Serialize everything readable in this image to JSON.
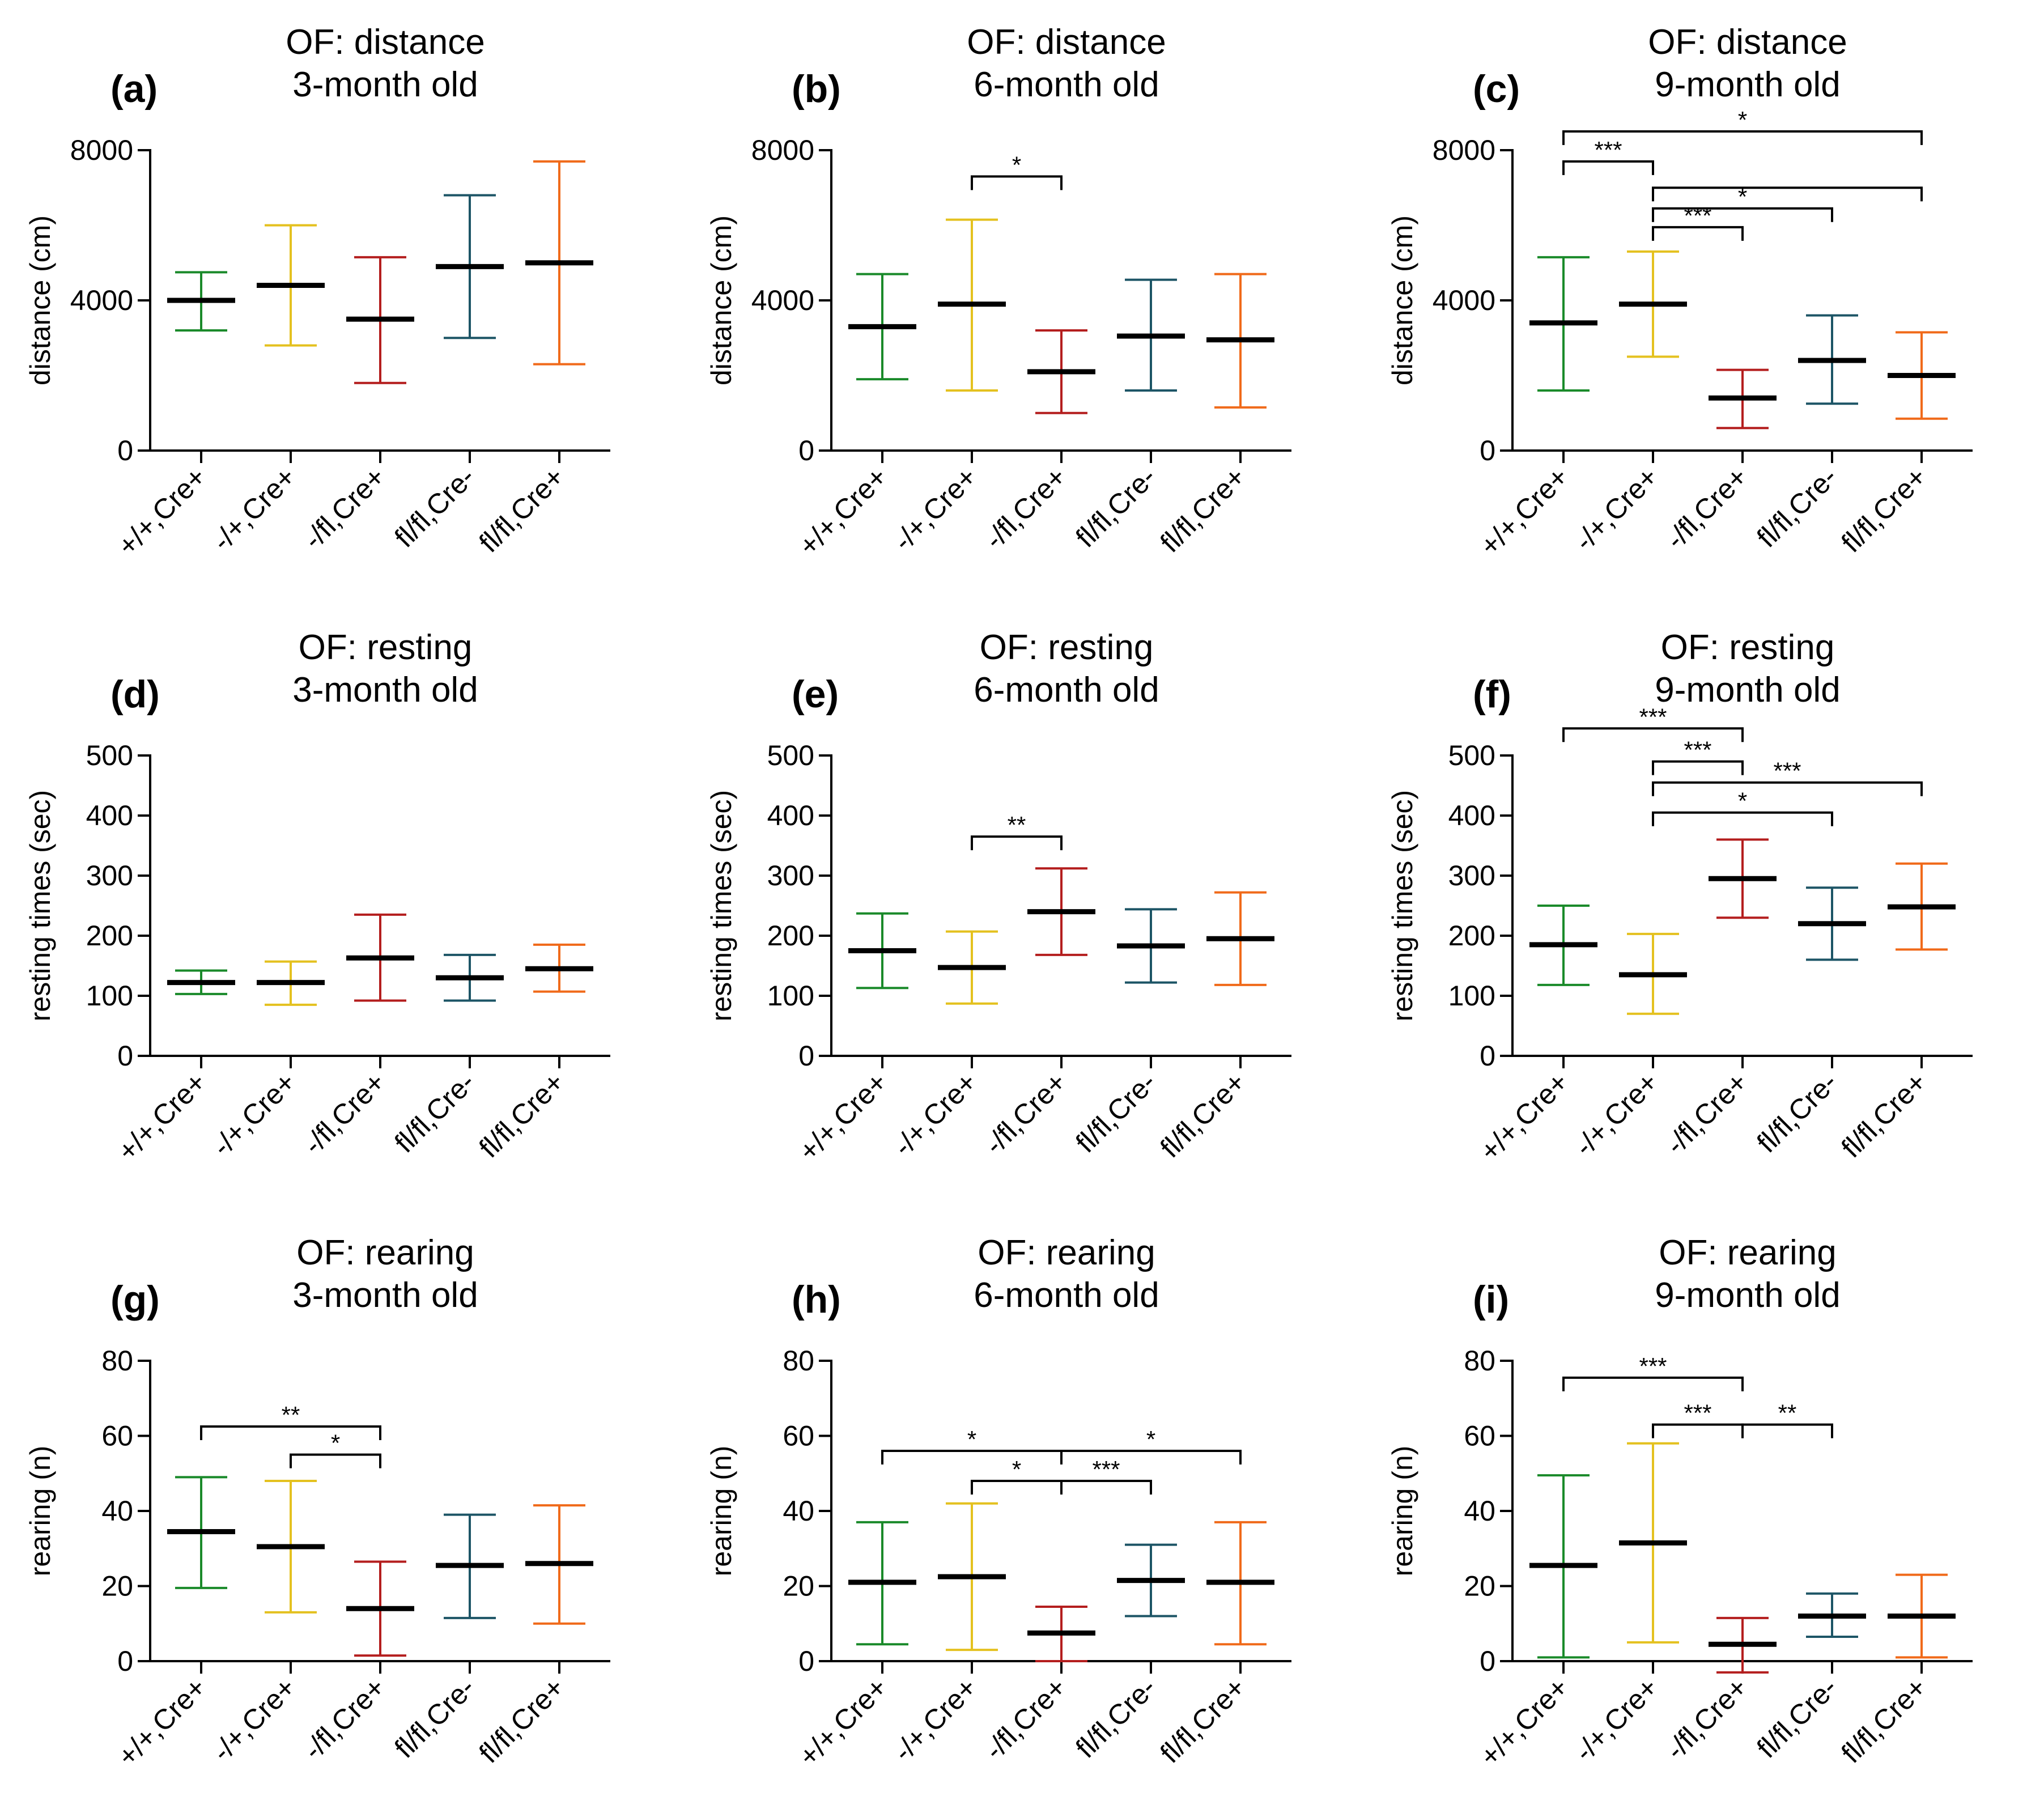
{
  "figure": {
    "groups": [
      "+/+,Cre+",
      "-/+,Cre+",
      "-/fl,Cre+",
      "fl/fl,Cre-",
      "fl/fl,Cre+"
    ],
    "colors": [
      "#1a8a2a",
      "#e4c11f",
      "#b41e1e",
      "#1d5566",
      "#f06a1a"
    ]
  },
  "chart_data": [
    {
      "type": "errorbar",
      "letter": "(a)",
      "title": "OF: distance",
      "subtitle": "3-month old",
      "ylabel": "distance (cm)",
      "ylim": [
        0,
        8000
      ],
      "yticks": [
        0,
        4000,
        8000
      ],
      "categories": [
        "+/+,Cre+",
        "-/+,Cre+",
        "-/fl,Cre+",
        "fl/fl,Cre-",
        "fl/fl,Cre+"
      ],
      "mean": [
        4000,
        4400,
        3500,
        4900,
        5000
      ],
      "low": [
        3200,
        2800,
        1800,
        3000,
        2300
      ],
      "high": [
        4750,
        6000,
        5150,
        6800,
        7700
      ],
      "significance": []
    },
    {
      "type": "errorbar",
      "letter": "(b)",
      "title": "OF: distance",
      "subtitle": "6-month old",
      "ylabel": "distance (cm)",
      "ylim": [
        0,
        8000
      ],
      "yticks": [
        0,
        4000,
        8000
      ],
      "categories": [
        "+/+,Cre+",
        "-/+,Cre+",
        "-/fl,Cre+",
        "fl/fl,Cre-",
        "fl/fl,Cre+"
      ],
      "mean": [
        3300,
        3900,
        2100,
        3050,
        2950
      ],
      "low": [
        1900,
        1600,
        1000,
        1600,
        1150
      ],
      "high": [
        4700,
        6150,
        3200,
        4550,
        4700
      ],
      "significance": [
        {
          "from": 1,
          "to": 2,
          "label": "*",
          "y": 7300
        }
      ]
    },
    {
      "type": "errorbar",
      "letter": "(c)",
      "title": "OF: distance",
      "subtitle": "9-month old",
      "ylabel": "distance (cm)",
      "ylim": [
        0,
        8000
      ],
      "yticks": [
        0,
        4000,
        8000
      ],
      "categories": [
        "+/+,Cre+",
        "-/+,Cre+",
        "-/fl,Cre+",
        "fl/fl,Cre-",
        "fl/fl,Cre+"
      ],
      "mean": [
        3400,
        3900,
        1400,
        2400,
        2000
      ],
      "low": [
        1600,
        2500,
        600,
        1250,
        850
      ],
      "high": [
        5150,
        5300,
        2150,
        3600,
        3150
      ],
      "significance": [
        {
          "from": 0,
          "to": 4,
          "label": "*",
          "y": 8500
        },
        {
          "from": 0,
          "to": 1,
          "label": "***",
          "y": 7700
        },
        {
          "from": 1,
          "to": 4,
          "label": "",
          "y": 7000
        },
        {
          "from": 1,
          "to": 3,
          "label": "*",
          "y": 6450
        },
        {
          "from": 1,
          "to": 2,
          "label": "***",
          "y": 5950
        }
      ]
    },
    {
      "type": "errorbar",
      "letter": "(d)",
      "title": "OF: resting",
      "subtitle": "3-month old",
      "ylabel": "resting times (sec)",
      "ylim": [
        0,
        500
      ],
      "yticks": [
        0,
        100,
        200,
        300,
        400,
        500
      ],
      "categories": [
        "+/+,Cre+",
        "-/+,Cre+",
        "-/fl,Cre+",
        "fl/fl,Cre-",
        "fl/fl,Cre+"
      ],
      "mean": [
        122,
        122,
        163,
        130,
        145
      ],
      "low": [
        103,
        85,
        92,
        92,
        107
      ],
      "high": [
        142,
        157,
        235,
        168,
        185
      ],
      "significance": []
    },
    {
      "type": "errorbar",
      "letter": "(e)",
      "title": "OF: resting",
      "subtitle": "6-month old",
      "ylabel": "resting times (sec)",
      "ylim": [
        0,
        500
      ],
      "yticks": [
        0,
        100,
        200,
        300,
        400,
        500
      ],
      "categories": [
        "+/+,Cre+",
        "-/+,Cre+",
        "-/fl,Cre+",
        "fl/fl,Cre-",
        "fl/fl,Cre+"
      ],
      "mean": [
        175,
        147,
        240,
        183,
        195
      ],
      "low": [
        113,
        87,
        168,
        122,
        118
      ],
      "high": [
        237,
        207,
        312,
        244,
        272
      ],
      "significance": [
        {
          "from": 1,
          "to": 2,
          "label": "**",
          "y": 365
        }
      ]
    },
    {
      "type": "errorbar",
      "letter": "(f)",
      "title": "OF: resting",
      "subtitle": "9-month old",
      "ylabel": "resting times (sec)",
      "ylim": [
        0,
        500
      ],
      "yticks": [
        0,
        100,
        200,
        300,
        400,
        500
      ],
      "categories": [
        "+/+,Cre+",
        "-/+,Cre+",
        "-/fl,Cre+",
        "fl/fl,Cre-",
        "fl/fl,Cre+"
      ],
      "mean": [
        185,
        135,
        295,
        220,
        248
      ],
      "low": [
        118,
        70,
        230,
        160,
        177
      ],
      "high": [
        250,
        203,
        360,
        280,
        320
      ],
      "significance": [
        {
          "from": 0,
          "to": 2,
          "label": "***",
          "y": 545
        },
        {
          "from": 1,
          "to": 2,
          "label": "***",
          "y": 490
        },
        {
          "from": 1,
          "to": 4,
          "label": "***",
          "y": 455
        },
        {
          "from": 1,
          "to": 3,
          "label": "*",
          "y": 405
        }
      ]
    },
    {
      "type": "errorbar",
      "letter": "(g)",
      "title": "OF: rearing",
      "subtitle": "3-month old",
      "ylabel": "rearing (n)",
      "ylim": [
        0,
        80
      ],
      "yticks": [
        0,
        20,
        40,
        60,
        80
      ],
      "categories": [
        "+/+,Cre+",
        "-/+,Cre+",
        "-/fl,Cre+",
        "fl/fl,Cre-",
        "fl/fl,Cre+"
      ],
      "mean": [
        34.5,
        30.5,
        14,
        25.5,
        26
      ],
      "low": [
        19.5,
        13,
        1.5,
        11.5,
        10
      ],
      "high": [
        49,
        48,
        26.5,
        39,
        41.5
      ],
      "significance": [
        {
          "from": 0,
          "to": 2,
          "label": "**",
          "y": 62.5
        },
        {
          "from": 1,
          "to": 2,
          "label": "*",
          "y": 55
        }
      ]
    },
    {
      "type": "errorbar",
      "letter": "(h)",
      "title": "OF: rearing",
      "subtitle": "6-month old",
      "ylabel": "rearing (n)",
      "ylim": [
        0,
        80
      ],
      "yticks": [
        0,
        20,
        40,
        60,
        80
      ],
      "categories": [
        "+/+,Cre+",
        "-/+,Cre+",
        "-/fl,Cre+",
        "fl/fl,Cre-",
        "fl/fl,Cre+"
      ],
      "mean": [
        21,
        22.5,
        7.5,
        21.5,
        21
      ],
      "low": [
        4.5,
        3,
        0,
        12,
        4.5
      ],
      "high": [
        37,
        42,
        14.5,
        31,
        37
      ],
      "significance": [
        {
          "from": 0,
          "to": 2,
          "label": "*",
          "y": 56
        },
        {
          "from": 2,
          "to": 4,
          "label": "*",
          "y": 56
        },
        {
          "from": 1,
          "to": 2,
          "label": "*",
          "y": 48
        },
        {
          "from": 2,
          "to": 3,
          "label": "***",
          "y": 48
        }
      ]
    },
    {
      "type": "errorbar",
      "letter": "(i)",
      "title": "OF: rearing",
      "subtitle": "9-month old",
      "ylabel": "rearing (n)",
      "ylim": [
        0,
        80
      ],
      "yticks": [
        0,
        20,
        40,
        60,
        80
      ],
      "categories": [
        "+/+,Cre+",
        "-/+,Cre+",
        "-/fl,Cre+",
        "fl/fl,Cre-",
        "fl/fl,Cre+"
      ],
      "mean": [
        25.5,
        31.5,
        4.5,
        12,
        12
      ],
      "low": [
        1,
        5,
        -3,
        6.5,
        1
      ],
      "high": [
        49.5,
        58,
        11.5,
        18,
        23
      ],
      "significance": [
        {
          "from": 0,
          "to": 2,
          "label": "***",
          "y": 75.5
        },
        {
          "from": 1,
          "to": 2,
          "label": "***",
          "y": 63
        },
        {
          "from": 2,
          "to": 3,
          "label": "**",
          "y": 63
        }
      ]
    }
  ]
}
